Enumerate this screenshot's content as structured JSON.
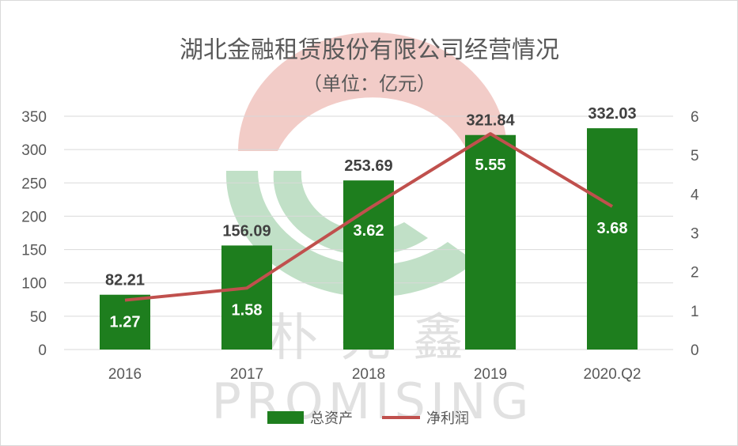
{
  "chart_data": {
    "type": "bar",
    "title": "湖北金融租赁股份有限公司经营情况",
    "subtitle": "（单位：亿元）",
    "categories": [
      "2016",
      "2017",
      "2018",
      "2019",
      "2020.Q2"
    ],
    "series": [
      {
        "name": "总资产",
        "type": "bar",
        "axis": "left",
        "color": "#1e7e1e",
        "values": [
          82.21,
          156.09,
          253.69,
          321.84,
          332.03
        ],
        "labels": [
          "82.21",
          "156.09",
          "253.69",
          "321.84",
          "332.03"
        ]
      },
      {
        "name": "净利润",
        "type": "line",
        "axis": "right",
        "color": "#c0504d",
        "values": [
          1.27,
          1.58,
          3.62,
          5.55,
          3.68
        ],
        "labels": [
          "1.27",
          "1.58",
          "3.62",
          "5.55",
          "3.68"
        ]
      }
    ],
    "ylim_left": [
      0,
      350
    ],
    "yticks_left": [
      "0",
      "50",
      "100",
      "150",
      "200",
      "250",
      "300",
      "350"
    ],
    "ylim_right": [
      0,
      6
    ],
    "yticks_right": [
      "0",
      "1",
      "2",
      "3",
      "4",
      "5",
      "6"
    ],
    "grid": true,
    "legend_position": "bottom"
  },
  "watermark": {
    "brand_cn": "朴兆鑫",
    "brand_en": "PROMISING",
    "colors": {
      "red": "#e8a39b",
      "green": "#8fc79a"
    }
  }
}
